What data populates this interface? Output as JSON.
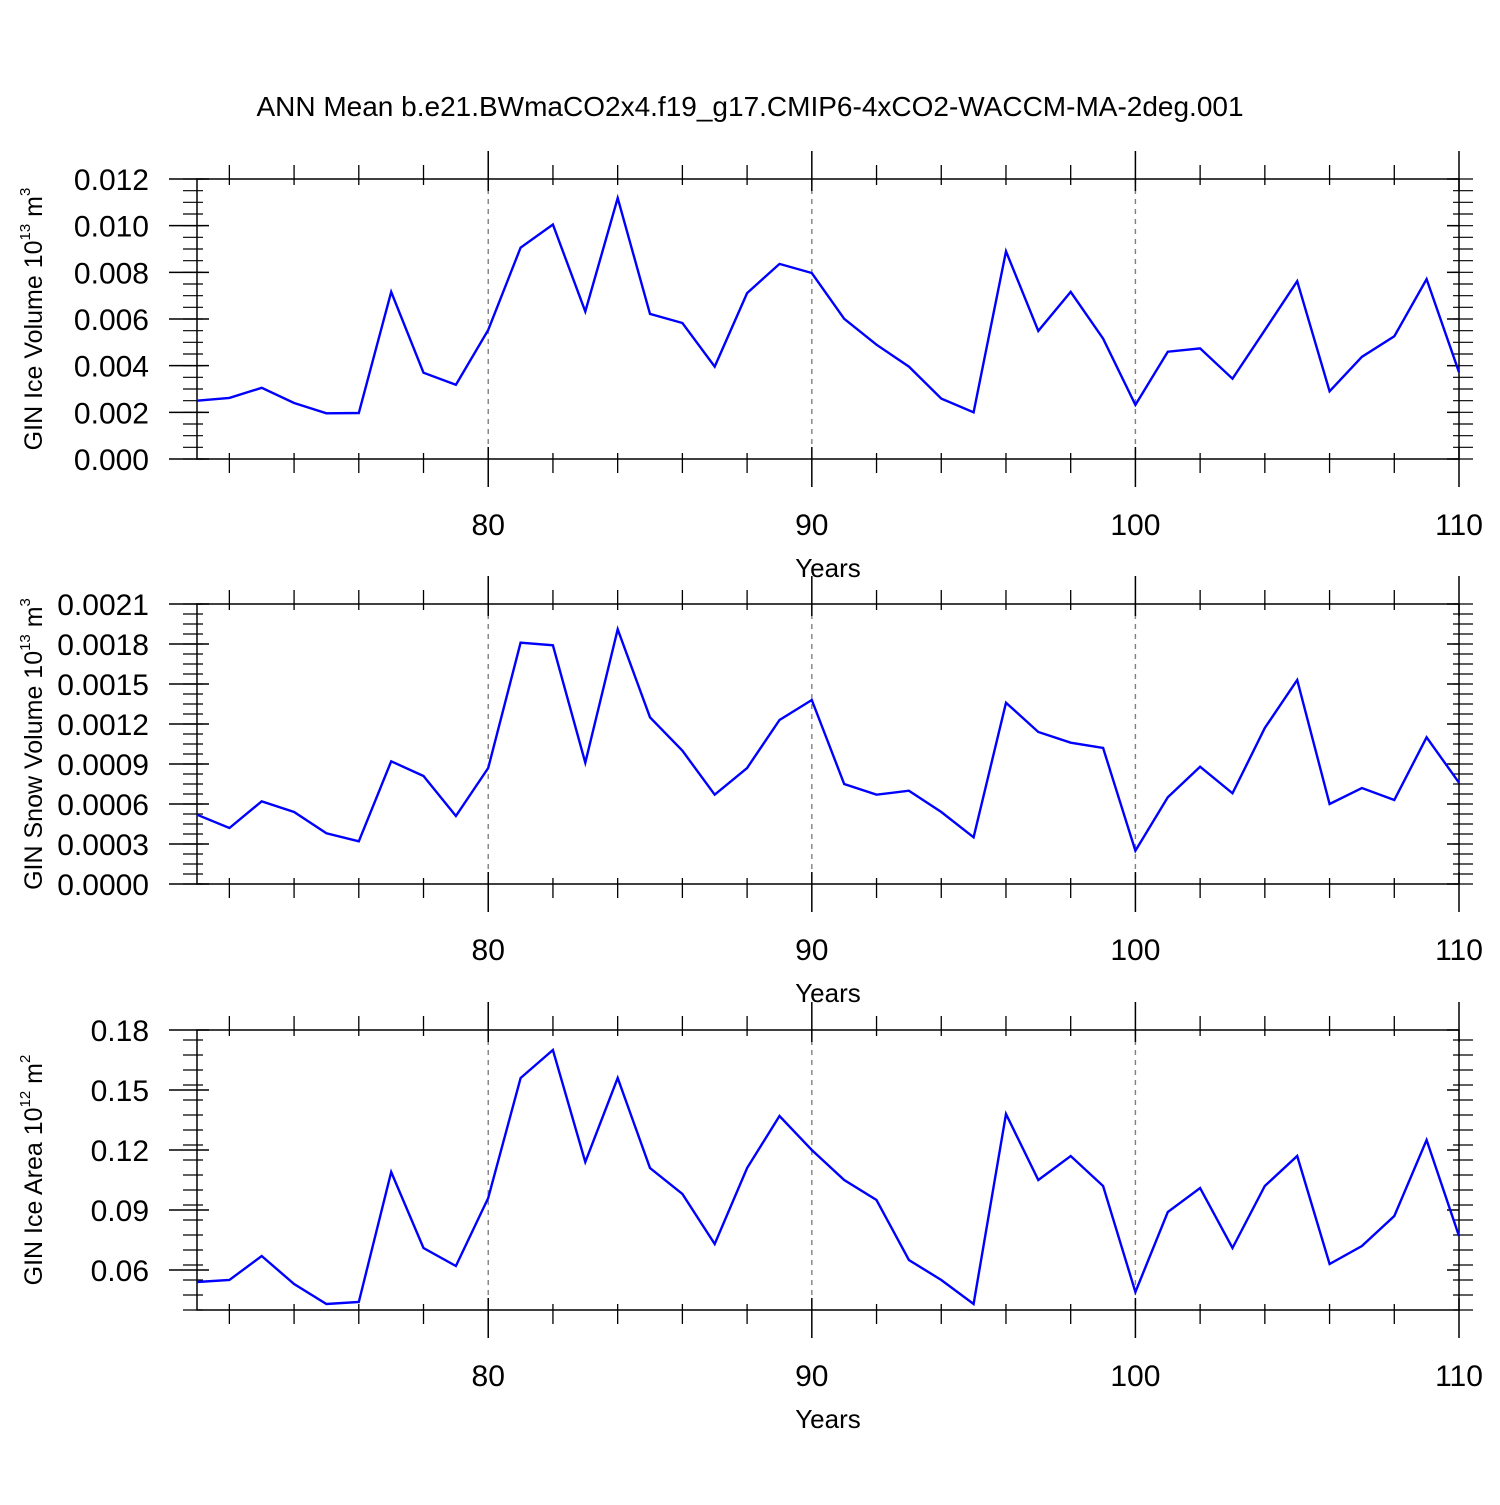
{
  "title": "ANN Mean b.e21.BWmaCO2x4.f19_g17.CMIP6-4xCO2-WACCM-MA-2deg.001",
  "colors": {
    "line": "#0000ff",
    "axis": "#000000",
    "grid": "#808080"
  },
  "chart_data": [
    {
      "type": "line",
      "ylabel_prefix": "GIN Ice Volume 10",
      "ylabel_exp": "13",
      "ylabel_unit": " m",
      "ylabel_unit_exp": "3",
      "xlabel": "Years",
      "xlim": [
        71,
        110
      ],
      "ylim": [
        0,
        0.012
      ],
      "yticks": [
        0.0,
        0.002,
        0.004,
        0.006,
        0.008,
        0.01,
        0.012
      ],
      "ytick_labels": [
        "0.000",
        "0.002",
        "0.004",
        "0.006",
        "0.008",
        "0.010",
        "0.012"
      ],
      "xticks": [
        80,
        90,
        100,
        110
      ],
      "xtick_labels": [
        "80",
        "90",
        "100",
        "110"
      ],
      "x": [
        71,
        72,
        73,
        74,
        75,
        76,
        77,
        78,
        79,
        80,
        81,
        82,
        83,
        84,
        85,
        86,
        87,
        88,
        89,
        90,
        91,
        92,
        93,
        94,
        95,
        96,
        97,
        98,
        99,
        100,
        101,
        102,
        103,
        104,
        105,
        106,
        107,
        108,
        109,
        110
      ],
      "values": [
        0.0025,
        0.00262,
        0.00305,
        0.0024,
        0.00196,
        0.00197,
        0.00716,
        0.0037,
        0.00318,
        0.00553,
        0.00906,
        0.01005,
        0.00632,
        0.01118,
        0.00622,
        0.00583,
        0.00396,
        0.00711,
        0.00836,
        0.00797,
        0.00601,
        0.0049,
        0.00396,
        0.00259,
        0.002,
        0.0089,
        0.00549,
        0.00716,
        0.00516,
        0.00232,
        0.0046,
        0.00474,
        0.00344,
        0.00552,
        0.00762,
        0.0029,
        0.00438,
        0.00526,
        0.00771,
        0.00372
      ]
    },
    {
      "type": "line",
      "ylabel_prefix": "GIN Snow Volume 10",
      "ylabel_exp": "13",
      "ylabel_unit": " m",
      "ylabel_unit_exp": "3",
      "xlabel": "Years",
      "xlim": [
        71,
        110
      ],
      "ylim": [
        0,
        0.0021
      ],
      "yticks": [
        0.0,
        0.0003,
        0.0006,
        0.0009,
        0.0012,
        0.0015,
        0.0018,
        0.0021
      ],
      "ytick_labels": [
        "0.0000",
        "0.0003",
        "0.0006",
        "0.0009",
        "0.0012",
        "0.0015",
        "0.0018",
        "0.0021"
      ],
      "xticks": [
        80,
        90,
        100,
        110
      ],
      "xtick_labels": [
        "80",
        "90",
        "100",
        "110"
      ],
      "x": [
        71,
        72,
        73,
        74,
        75,
        76,
        77,
        78,
        79,
        80,
        81,
        82,
        83,
        84,
        85,
        86,
        87,
        88,
        89,
        90,
        91,
        92,
        93,
        94,
        95,
        96,
        97,
        98,
        99,
        100,
        101,
        102,
        103,
        104,
        105,
        106,
        107,
        108,
        109,
        110
      ],
      "values": [
        0.00052,
        0.00042,
        0.00062,
        0.00054,
        0.00038,
        0.00032,
        0.00092,
        0.00081,
        0.00051,
        0.00087,
        0.00181,
        0.00179,
        0.00091,
        0.00191,
        0.00125,
        0.001,
        0.00067,
        0.00087,
        0.00123,
        0.00138,
        0.00075,
        0.00067,
        0.0007,
        0.00054,
        0.00035,
        0.00136,
        0.00114,
        0.00106,
        0.00102,
        0.00025,
        0.00065,
        0.00088,
        0.00068,
        0.00117,
        0.00153,
        0.0006,
        0.00072,
        0.00063,
        0.0011,
        0.00076
      ]
    },
    {
      "type": "line",
      "ylabel_prefix": "GIN Ice Area 10",
      "ylabel_exp": "12",
      "ylabel_unit": " m",
      "ylabel_unit_exp": "2",
      "xlabel": "Years",
      "xlim": [
        71,
        110
      ],
      "ylim": [
        0.04,
        0.18
      ],
      "yticks": [
        0.06,
        0.09,
        0.12,
        0.15,
        0.18
      ],
      "ytick_labels": [
        "0.06",
        "0.09",
        "0.12",
        "0.15",
        "0.18"
      ],
      "xticks": [
        80,
        90,
        100,
        110
      ],
      "xtick_labels": [
        "80",
        "90",
        "100",
        "110"
      ],
      "x": [
        71,
        72,
        73,
        74,
        75,
        76,
        77,
        78,
        79,
        80,
        81,
        82,
        83,
        84,
        85,
        86,
        87,
        88,
        89,
        90,
        91,
        92,
        93,
        94,
        95,
        96,
        97,
        98,
        99,
        100,
        101,
        102,
        103,
        104,
        105,
        106,
        107,
        108,
        109,
        110
      ],
      "values": [
        0.054,
        0.055,
        0.067,
        0.053,
        0.043,
        0.044,
        0.109,
        0.071,
        0.062,
        0.096,
        0.156,
        0.17,
        0.114,
        0.156,
        0.111,
        0.098,
        0.073,
        0.111,
        0.137,
        0.12,
        0.105,
        0.095,
        0.065,
        0.055,
        0.043,
        0.138,
        0.105,
        0.117,
        0.102,
        0.049,
        0.089,
        0.101,
        0.071,
        0.102,
        0.117,
        0.063,
        0.072,
        0.087,
        0.125,
        0.077
      ]
    }
  ]
}
